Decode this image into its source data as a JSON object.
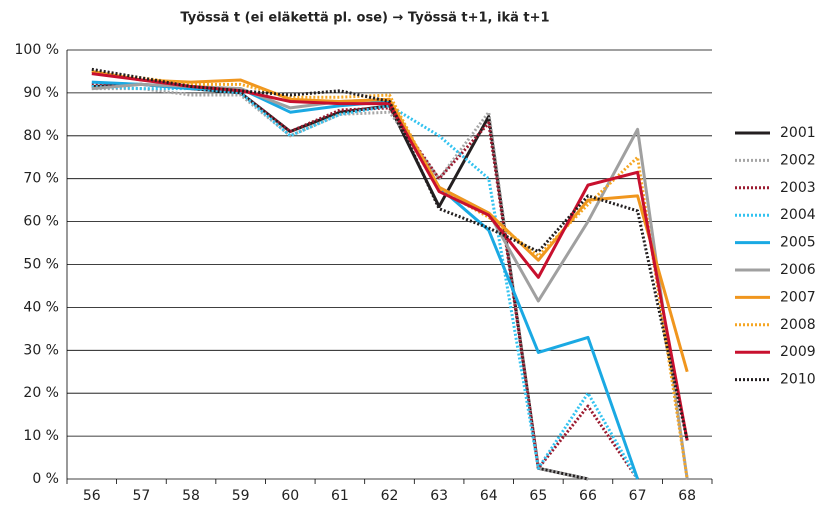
{
  "chart_data": {
    "type": "line",
    "title": "Työssä t (ei eläkettä pl. ose) → Työssä t+1, ikä t+1",
    "categories": [
      "56",
      "57",
      "58",
      "59",
      "60",
      "61",
      "62",
      "63",
      "64",
      "65",
      "66",
      "67",
      "68"
    ],
    "ylim": [
      0,
      100
    ],
    "yticks": [
      {
        "value": 0,
        "label": "0 %"
      },
      {
        "value": 10,
        "label": "10 %"
      },
      {
        "value": 20,
        "label": "20 %"
      },
      {
        "value": 30,
        "label": "30 %"
      },
      {
        "value": 40,
        "label": "40 %"
      },
      {
        "value": 50,
        "label": "50 %"
      },
      {
        "value": 60,
        "label": "60 %"
      },
      {
        "value": 70,
        "label": "70 %"
      },
      {
        "value": 80,
        "label": "80 %"
      },
      {
        "value": 90,
        "label": "90 %"
      },
      {
        "value": 100,
        "label": "100 %"
      }
    ],
    "grid": true,
    "legend": "right",
    "series": [
      {
        "name": "2001",
        "color": "#231f20",
        "style": "solid",
        "values": [
          91.5,
          92,
          91,
          90,
          81,
          85.5,
          87,
          63.5,
          84.5,
          2.5,
          0,
          null,
          null
        ]
      },
      {
        "name": "2002",
        "color": "#a6a6a6",
        "style": "dotted",
        "values": [
          91,
          91,
          89.5,
          89.5,
          80,
          85,
          85.5,
          70,
          85.5,
          2.5,
          0,
          null,
          null
        ]
      },
      {
        "name": "2003",
        "color": "#9b1b30",
        "style": "dotted",
        "values": [
          92,
          92,
          91,
          90,
          81,
          86,
          86.5,
          70,
          83,
          2.5,
          17,
          0,
          null
        ]
      },
      {
        "name": "2004",
        "color": "#33c3f0",
        "style": "dotted",
        "values": [
          91.5,
          91,
          91,
          90,
          80,
          85,
          87,
          80,
          70,
          2.5,
          20,
          0,
          null
        ]
      },
      {
        "name": "2005",
        "color": "#1aa9e3",
        "style": "solid",
        "values": [
          92.5,
          92,
          91,
          91,
          85.5,
          87,
          88,
          68,
          58,
          29.5,
          33,
          0,
          null
        ]
      },
      {
        "name": "2006",
        "color": "#a0a0a0",
        "style": "solid",
        "values": [
          91,
          92,
          91.5,
          91,
          86.5,
          88,
          88.5,
          68,
          62,
          41.5,
          60,
          81.5,
          0
        ]
      },
      {
        "name": "2007",
        "color": "#f0961e",
        "style": "solid",
        "values": [
          95,
          93,
          92.5,
          93,
          88.5,
          88,
          88.5,
          68,
          62,
          51,
          65,
          66,
          25
        ]
      },
      {
        "name": "2008",
        "color": "#f5a623",
        "style": "dotted",
        "values": [
          95,
          93.5,
          92,
          92,
          89,
          89,
          89.5,
          67.5,
          61,
          52,
          64,
          75,
          0
        ]
      },
      {
        "name": "2009",
        "color": "#c8102e",
        "style": "solid",
        "values": [
          94.5,
          93,
          91.5,
          90.5,
          88,
          87.5,
          87.5,
          67,
          61.5,
          47,
          68.5,
          71.5,
          9
        ]
      },
      {
        "name": "2010",
        "color": "#231f20",
        "style": "dotted",
        "values": [
          95.5,
          93.5,
          91.5,
          90.5,
          89.5,
          90.5,
          88,
          63,
          58.5,
          53,
          66,
          62.5,
          9
        ]
      }
    ]
  }
}
